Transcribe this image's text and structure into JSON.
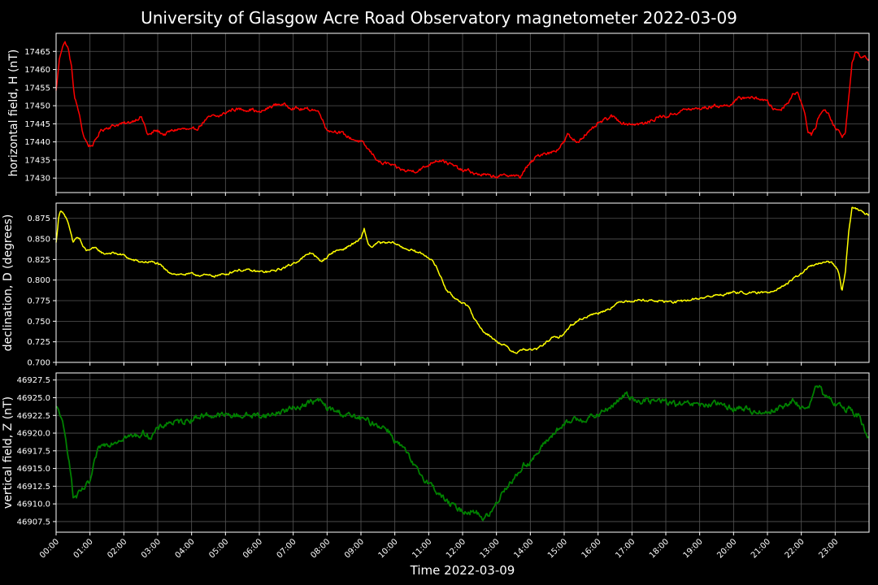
{
  "title": "University of Glasgow Acre Road Observatory magnetometer 2022-03-09",
  "xlabel": "Time 2022-03-09",
  "x_ticks": [
    "00:00",
    "01:00",
    "02:00",
    "03:00",
    "04:00",
    "05:00",
    "06:00",
    "07:00",
    "08:00",
    "09:00",
    "10:00",
    "11:00",
    "12:00",
    "13:00",
    "14:00",
    "15:00",
    "16:00",
    "17:00",
    "18:00",
    "19:00",
    "20:00",
    "21:00",
    "22:00",
    "23:00"
  ],
  "chart_data": [
    {
      "type": "line",
      "ylabel": "horizontal field, H (nT)",
      "color": "#ff0000",
      "xlim": [
        0,
        24
      ],
      "ylim": [
        17426,
        17470
      ],
      "yticks": [
        17430,
        17435,
        17440,
        17445,
        17450,
        17455,
        17460,
        17465
      ],
      "grid": true,
      "noise": 0.4,
      "x": [
        0,
        0.1,
        0.2,
        0.27,
        0.35,
        0.45,
        0.55,
        0.65,
        0.8,
        0.95,
        1.05,
        1.15,
        1.3,
        1.5,
        1.7,
        1.9,
        2.1,
        2.3,
        2.5,
        2.6,
        2.7,
        2.8,
        2.9,
        3.0,
        3.2,
        3.4,
        3.6,
        3.8,
        4.0,
        4.2,
        4.4,
        4.6,
        4.8,
        5.0,
        5.2,
        5.4,
        5.6,
        5.8,
        6.0,
        6.2,
        6.4,
        6.6,
        6.8,
        7.0,
        7.2,
        7.4,
        7.6,
        7.8,
        7.95,
        8.1,
        8.3,
        8.5,
        8.7,
        9.0,
        9.2,
        9.4,
        9.6,
        9.8,
        10.0,
        10.3,
        10.6,
        10.9,
        11.2,
        11.4,
        11.6,
        11.8,
        12.0,
        12.2,
        12.4,
        12.6,
        12.8,
        13.0,
        13.2,
        13.4,
        13.6,
        13.7,
        13.8,
        14.0,
        14.2,
        14.4,
        14.6,
        14.8,
        15.0,
        15.1,
        15.2,
        15.4,
        15.6,
        15.8,
        16.0,
        16.2,
        16.4,
        16.6,
        16.8,
        17.0,
        17.2,
        17.4,
        17.6,
        17.8,
        18.0,
        18.3,
        18.6,
        18.9,
        19.2,
        19.5,
        19.8,
        20.0,
        20.2,
        20.4,
        20.6,
        20.8,
        21.0,
        21.2,
        21.4,
        21.6,
        21.75,
        21.9,
        22.0,
        22.1,
        22.2,
        22.3,
        22.4,
        22.5,
        22.6,
        22.7,
        22.8,
        22.9,
        23.0,
        23.1,
        23.2,
        23.3,
        23.4,
        23.5,
        23.6,
        23.7,
        23.8,
        24.0
      ],
      "y": [
        17454,
        17463,
        17467,
        17467.5,
        17466,
        17461,
        17452,
        17449,
        17442,
        17439,
        17439,
        17440,
        17443,
        17444,
        17444.5,
        17445,
        17445,
        17446,
        17447,
        17445,
        17442,
        17442,
        17443,
        17443,
        17442,
        17443,
        17443.5,
        17443.5,
        17443,
        17444,
        17446,
        17447,
        17447,
        17448,
        17449,
        17449,
        17449,
        17449,
        17448,
        17449,
        17450,
        17450.5,
        17450,
        17449.5,
        17449,
        17449,
        17449,
        17448,
        17444,
        17443,
        17443,
        17442,
        17441,
        17440,
        17438,
        17436,
        17434,
        17434,
        17433,
        17432,
        17432,
        17433,
        17435,
        17435,
        17434,
        17433,
        17432,
        17432,
        17431,
        17431,
        17430.5,
        17430.5,
        17430.5,
        17431,
        17430.5,
        17430,
        17432,
        17434,
        17436,
        17437,
        17437,
        17438,
        17440,
        17442,
        17441,
        17440,
        17442,
        17443,
        17445,
        17446,
        17447,
        17446,
        17445,
        17445,
        17445,
        17445,
        17446,
        17447,
        17447,
        17448,
        17449,
        17449,
        17449.5,
        17450,
        17450,
        17451,
        17452,
        17452.5,
        17452,
        17452,
        17451,
        17449,
        17449,
        17451,
        17453,
        17454,
        17451,
        17448,
        17443,
        17442,
        17443,
        17447,
        17448,
        17449,
        17448,
        17446,
        17444,
        17443,
        17441,
        17443,
        17452,
        17462,
        17465,
        17464,
        17463.5,
        17463
      ],
      "x_tick_labels_visible": false
    },
    {
      "type": "line",
      "ylabel": "declination, D (degrees)",
      "color": "#ffff00",
      "xlim": [
        0,
        24
      ],
      "ylim": [
        0.7,
        0.8935
      ],
      "yticks": [
        0.7,
        0.725,
        0.75,
        0.775,
        0.8,
        0.825,
        0.85,
        0.875
      ],
      "ytick_labels": [
        "0.700",
        "0.725",
        "0.750",
        "0.775",
        "0.800",
        "0.825",
        "0.850",
        "0.875"
      ],
      "grid": true,
      "noise": 0.0012,
      "x": [
        0,
        0.08,
        0.15,
        0.22,
        0.3,
        0.4,
        0.5,
        0.6,
        0.7,
        0.8,
        0.9,
        1.0,
        1.2,
        1.4,
        1.6,
        1.8,
        2.0,
        2.2,
        2.5,
        2.8,
        3.0,
        3.3,
        3.6,
        4.0,
        4.3,
        4.6,
        5.0,
        5.3,
        5.6,
        6.0,
        6.3,
        6.6,
        6.9,
        7.2,
        7.4,
        7.5,
        7.6,
        7.8,
        8.0,
        8.2,
        8.5,
        8.8,
        9.0,
        9.1,
        9.2,
        9.3,
        9.5,
        9.8,
        10.0,
        10.2,
        10.5,
        10.8,
        11.0,
        11.2,
        11.4,
        11.5,
        11.7,
        12.0,
        12.2,
        12.4,
        12.6,
        12.8,
        13.0,
        13.2,
        13.4,
        13.6,
        13.8,
        14.0,
        14.2,
        14.4,
        14.6,
        14.8,
        15.0,
        15.2,
        15.5,
        15.8,
        16.0,
        16.3,
        16.6,
        16.8,
        17.0,
        17.3,
        17.6,
        18.0,
        18.3,
        18.6,
        19.0,
        19.3,
        19.6,
        20.0,
        20.3,
        20.6,
        21.0,
        21.3,
        21.6,
        21.9,
        22.2,
        22.5,
        22.8,
        23.0,
        23.1,
        23.2,
        23.3,
        23.4,
        23.5,
        23.6,
        23.7,
        23.8,
        24.0
      ],
      "y": [
        0.845,
        0.878,
        0.885,
        0.882,
        0.875,
        0.862,
        0.845,
        0.852,
        0.85,
        0.84,
        0.835,
        0.838,
        0.838,
        0.832,
        0.833,
        0.832,
        0.83,
        0.825,
        0.822,
        0.822,
        0.82,
        0.81,
        0.807,
        0.807,
        0.806,
        0.805,
        0.807,
        0.812,
        0.812,
        0.81,
        0.81,
        0.813,
        0.818,
        0.825,
        0.83,
        0.833,
        0.832,
        0.822,
        0.828,
        0.835,
        0.838,
        0.845,
        0.85,
        0.862,
        0.845,
        0.84,
        0.845,
        0.845,
        0.845,
        0.84,
        0.836,
        0.832,
        0.828,
        0.818,
        0.8,
        0.79,
        0.78,
        0.773,
        0.765,
        0.75,
        0.738,
        0.733,
        0.725,
        0.722,
        0.715,
        0.712,
        0.716,
        0.715,
        0.716,
        0.722,
        0.729,
        0.73,
        0.735,
        0.745,
        0.753,
        0.758,
        0.76,
        0.765,
        0.772,
        0.775,
        0.775,
        0.776,
        0.775,
        0.774,
        0.773,
        0.775,
        0.778,
        0.78,
        0.782,
        0.785,
        0.785,
        0.784,
        0.785,
        0.79,
        0.796,
        0.805,
        0.815,
        0.82,
        0.822,
        0.818,
        0.81,
        0.785,
        0.81,
        0.86,
        0.89,
        0.888,
        0.884,
        0.882,
        0.88
      ],
      "x_tick_labels_visible": false
    },
    {
      "type": "line",
      "ylabel": "vertical field, Z (nT)",
      "color": "#008000",
      "xlim": [
        0,
        24
      ],
      "ylim": [
        46906,
        46928.5
      ],
      "yticks": [
        46907.5,
        46910.0,
        46912.5,
        46915.0,
        46917.5,
        46920.0,
        46922.5,
        46925.0,
        46927.5
      ],
      "ytick_labels": [
        "46907.5",
        "46910.0",
        "46912.5",
        "46915.0",
        "46917.5",
        "46920.0",
        "46922.5",
        "46925.0",
        "46927.5"
      ],
      "grid": true,
      "noise": 0.35,
      "x": [
        0,
        0.1,
        0.2,
        0.3,
        0.4,
        0.5,
        0.6,
        0.7,
        0.8,
        1.0,
        1.1,
        1.2,
        1.3,
        1.5,
        1.8,
        2.0,
        2.3,
        2.6,
        2.8,
        3.0,
        3.3,
        3.6,
        4.0,
        4.3,
        4.6,
        5.0,
        5.3,
        5.6,
        6.0,
        6.3,
        6.6,
        7.0,
        7.3,
        7.6,
        7.8,
        8.0,
        8.3,
        8.6,
        9.0,
        9.3,
        9.6,
        9.8,
        10.0,
        10.3,
        10.6,
        11.0,
        11.3,
        11.6,
        12.0,
        12.3,
        12.5,
        12.6,
        12.8,
        13.0,
        13.2,
        13.4,
        13.6,
        13.8,
        14.0,
        14.2,
        14.5,
        14.8,
        15.0,
        15.3,
        15.6,
        16.0,
        16.3,
        16.6,
        16.8,
        17.0,
        17.3,
        17.6,
        18.0,
        18.3,
        18.6,
        19.0,
        19.3,
        19.6,
        20.0,
        20.3,
        20.6,
        21.0,
        21.3,
        21.6,
        21.8,
        22.0,
        22.1,
        22.3,
        22.4,
        22.5,
        22.6,
        22.7,
        22.9,
        23.1,
        23.3,
        23.5,
        23.6,
        23.7,
        23.8,
        24.0
      ],
      "y": [
        46923.5,
        46923,
        46921,
        46918.5,
        46916,
        46911,
        46911,
        46911.5,
        46912,
        46913,
        46915,
        46917,
        46918,
        46918.5,
        46919,
        46919.5,
        46919.5,
        46920,
        46919.5,
        46920.5,
        46921.5,
        46921.5,
        46922,
        46922.5,
        46922.5,
        46922.5,
        46922.5,
        46922.5,
        46922.5,
        46922.5,
        46923,
        46923.5,
        46924,
        46924.5,
        46924.5,
        46923.5,
        46923,
        46922.5,
        46922,
        46921.5,
        46921,
        46920.5,
        46919,
        46917.5,
        46915,
        46913,
        46911.5,
        46910,
        46909,
        46909,
        46908.5,
        46908,
        46908.5,
        46910,
        46912,
        46913,
        46914,
        46915.5,
        46916,
        46917,
        46919,
        46920.5,
        46921,
        46922,
        46922,
        46922.5,
        46923.5,
        46924.5,
        46925.5,
        46925,
        46924.5,
        46924.5,
        46924.5,
        46924,
        46924,
        46924,
        46924,
        46924,
        46923.5,
        46923.5,
        46923,
        46923,
        46923.5,
        46924,
        46924.5,
        46923.5,
        46923.5,
        46924.5,
        46926,
        46926.5,
        46926,
        46925,
        46924.5,
        46924,
        46923.5,
        46923.5,
        46922.5,
        46922.5,
        46921,
        46919
      ]
    }
  ]
}
